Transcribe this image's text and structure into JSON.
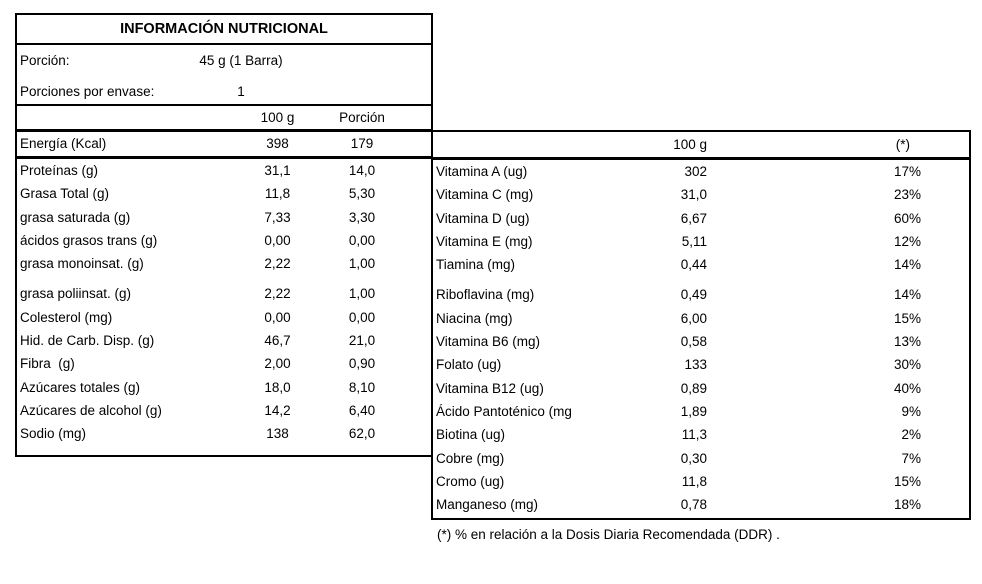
{
  "left_table": {
    "title": "INFORMACIÓN NUTRICIONAL",
    "portion_label": "Porción:",
    "portion_value": "45 g (1 Barra)",
    "servings_label": "Porciones por envase:",
    "servings_value": "1",
    "col_headers": {
      "per100": "100 g",
      "portion": "Porción"
    },
    "energy_row": {
      "label": "Energía (Kcal)",
      "per100": "398",
      "portion": "179"
    },
    "rows_group1": [
      {
        "label": "Proteínas (g)",
        "per100": "31,1",
        "portion": "14,0"
      },
      {
        "label": "Grasa Total (g)",
        "per100": "11,8",
        "portion": "5,30"
      },
      {
        "label": "grasa saturada (g)",
        "per100": "7,33",
        "portion": "3,30"
      },
      {
        "label": "ácidos grasos trans (g)",
        "per100": "0,00",
        "portion": "0,00"
      },
      {
        "label": "grasa monoinsat. (g)",
        "per100": "2,22",
        "portion": "1,00"
      }
    ],
    "rows_group2": [
      {
        "label": "grasa poliinsat. (g)",
        "per100": "2,22",
        "portion": "1,00"
      },
      {
        "label": "Colesterol (mg)",
        "per100": "0,00",
        "portion": "0,00"
      },
      {
        "label": "Hid. de Carb. Disp. (g)",
        "per100": "46,7",
        "portion": "21,0"
      },
      {
        "label": "Fibra  (g)",
        "per100": "2,00",
        "portion": "0,90"
      },
      {
        "label": "Azúcares totales (g)",
        "per100": "18,0",
        "portion": "8,10"
      },
      {
        "label": "Azúcares de alcohol (g)",
        "per100": "14,2",
        "portion": "6,40"
      },
      {
        "label": "Sodio (mg)",
        "per100": "138",
        "portion": "62,0"
      }
    ]
  },
  "right_table": {
    "col_headers": {
      "per100": "100 g",
      "ddr": "(*)"
    },
    "rows_group1": [
      {
        "label": "Vitamina A (ug)",
        "per100": "302",
        "ddr": "17%"
      },
      {
        "label": "Vitamina C (mg)",
        "per100": "31,0",
        "ddr": "23%"
      },
      {
        "label": "Vitamina D (ug)",
        "per100": "6,67",
        "ddr": "60%"
      },
      {
        "label": "Vitamina E (mg)",
        "per100": "5,11",
        "ddr": "12%"
      },
      {
        "label": "Tiamina (mg)",
        "per100": "0,44",
        "ddr": "14%"
      }
    ],
    "rows_group2": [
      {
        "label": "Riboflavina (mg)",
        "per100": "0,49",
        "ddr": "14%"
      },
      {
        "label": "Niacina (mg)",
        "per100": "6,00",
        "ddr": "15%"
      },
      {
        "label": "Vitamina B6 (mg)",
        "per100": "0,58",
        "ddr": "13%"
      },
      {
        "label": "Folato (ug)",
        "per100": "133",
        "ddr": "30%"
      },
      {
        "label": "Vitamina B12 (ug)",
        "per100": "0,89",
        "ddr": "40%"
      },
      {
        "label": "Ácido Pantoténico (mg",
        "per100": "1,89",
        "ddr": "9%"
      },
      {
        "label": "Biotina (ug)",
        "per100": "11,3",
        "ddr": "2%"
      },
      {
        "label": "Cobre (mg)",
        "per100": "0,30",
        "ddr": "7%"
      },
      {
        "label": "Cromo (ug)",
        "per100": "11,8",
        "ddr": "15%"
      },
      {
        "label": "Manganeso (mg)",
        "per100": "0,78",
        "ddr": "18%"
      }
    ]
  },
  "footnote": "(*) % en relación a la Dosis Diaria Recomendada (DDR) ."
}
